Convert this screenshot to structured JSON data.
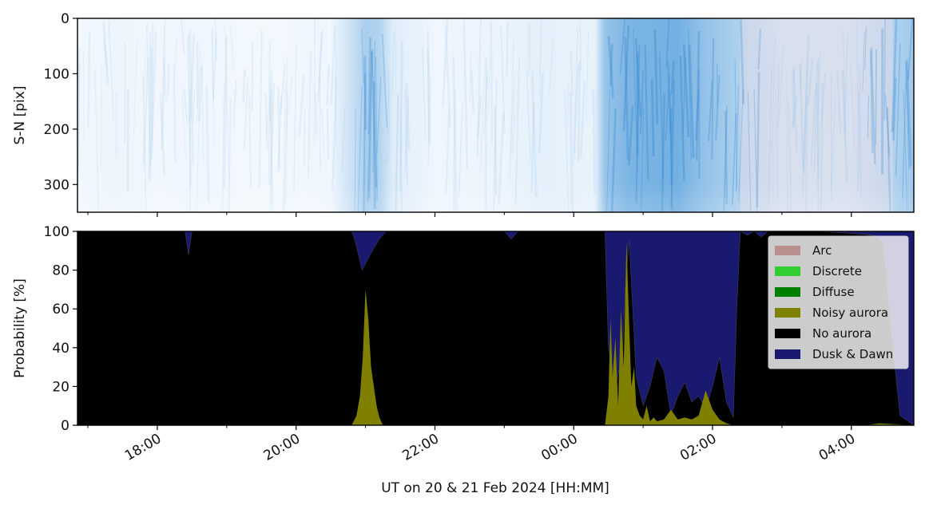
{
  "chart_data": [
    {
      "type": "heatmap",
      "ylabel": "S-N [pix]",
      "ylim": [
        350,
        0
      ],
      "yticks": [
        0,
        100,
        200,
        300
      ],
      "yticklabels": [
        "0",
        "100",
        "200",
        "300"
      ],
      "x_hours_range": [
        16.85,
        28.9
      ],
      "brightness_profile": [
        {
          "x": 16.9,
          "v": 0.05
        },
        {
          "x": 17.4,
          "v": 0.07
        },
        {
          "x": 18.0,
          "v": 0.05
        },
        {
          "x": 18.5,
          "v": 0.06
        },
        {
          "x": 19.5,
          "v": 0.04
        },
        {
          "x": 20.5,
          "v": 0.06
        },
        {
          "x": 20.85,
          "v": 0.3
        },
        {
          "x": 21.0,
          "v": 0.45
        },
        {
          "x": 21.2,
          "v": 0.4
        },
        {
          "x": 21.4,
          "v": 0.15
        },
        {
          "x": 22.0,
          "v": 0.06
        },
        {
          "x": 23.0,
          "v": 0.08
        },
        {
          "x": 23.5,
          "v": 0.12
        },
        {
          "x": 24.3,
          "v": 0.1
        },
        {
          "x": 24.45,
          "v": 0.55
        },
        {
          "x": 24.8,
          "v": 0.7
        },
        {
          "x": 25.5,
          "v": 0.75
        },
        {
          "x": 25.8,
          "v": 0.6
        },
        {
          "x": 26.3,
          "v": 0.45
        },
        {
          "x": 27.0,
          "v": 0.25
        },
        {
          "x": 28.0,
          "v": 0.25
        },
        {
          "x": 28.9,
          "v": 0.5
        }
      ]
    },
    {
      "type": "area",
      "stacked": true,
      "xlabel": "UT on 20 & 21 Feb 2024 [HH:MM]",
      "ylabel": "Probability [%]",
      "ylim": [
        0,
        100
      ],
      "yticks": [
        0,
        20,
        40,
        60,
        80,
        100
      ],
      "yticklabels": [
        "0",
        "20",
        "40",
        "60",
        "80",
        "100"
      ],
      "xlim": [
        16.85,
        28.9
      ],
      "x_major_ticks": [
        18,
        20,
        22,
        24,
        26,
        28
      ],
      "xticklabels": [
        "18:00",
        "20:00",
        "22:00",
        "00:00",
        "02:00",
        "04:00"
      ],
      "x_minor_ticks": [
        17,
        19,
        21,
        23,
        25,
        27
      ],
      "legend_position": "upper-right",
      "series": [
        {
          "name": "Arc",
          "color": "#bc8f8f",
          "x": [
            16.85,
            28.9
          ],
          "y": [
            0,
            0
          ]
        },
        {
          "name": "Discrete",
          "color": "#32cd32",
          "x": [
            16.85,
            28.9
          ],
          "y": [
            0,
            0
          ]
        },
        {
          "name": "Diffuse",
          "color": "#008000",
          "x": [
            16.85,
            28.9
          ],
          "y": [
            0,
            0
          ]
        },
        {
          "name": "Noisy aurora",
          "color": "#808000",
          "x": [
            16.85,
            20.8,
            20.87,
            20.92,
            20.96,
            21.0,
            21.04,
            21.08,
            21.12,
            21.16,
            21.2,
            21.25,
            24.45,
            24.5,
            24.53,
            24.56,
            24.6,
            24.64,
            24.68,
            24.72,
            24.76,
            24.8,
            24.83,
            24.87,
            24.9,
            24.95,
            25.0,
            25.05,
            25.1,
            25.15,
            25.2,
            25.3,
            25.4,
            25.5,
            25.6,
            25.7,
            25.8,
            25.9,
            26.0,
            26.1,
            26.2,
            26.3,
            26.4,
            28.2,
            28.4,
            28.9
          ],
          "y": [
            0,
            0,
            5,
            15,
            35,
            70,
            55,
            30,
            20,
            10,
            4,
            0,
            0,
            15,
            55,
            25,
            45,
            10,
            60,
            30,
            95,
            50,
            20,
            30,
            10,
            5,
            3,
            10,
            2,
            4,
            2,
            3,
            8,
            3,
            4,
            3,
            5,
            18,
            8,
            3,
            1,
            0,
            0,
            0,
            1,
            0
          ]
        },
        {
          "name": "No aurora",
          "color": "#000000",
          "x": [
            16.85,
            18.0,
            18.4,
            18.45,
            18.5,
            20.8,
            20.85,
            20.95,
            21.1,
            21.2,
            21.3,
            21.4,
            22.0,
            23.0,
            23.1,
            23.2,
            24.45,
            24.5,
            24.6,
            24.7,
            24.75,
            24.8,
            24.9,
            25.0,
            25.1,
            25.2,
            25.3,
            25.4,
            25.5,
            25.6,
            25.7,
            25.8,
            25.9,
            26.0,
            26.1,
            26.2,
            26.3,
            26.35,
            26.4,
            26.5,
            26.6,
            26.7,
            26.8,
            27.0,
            27.5,
            28.0,
            28.3,
            28.45,
            28.5,
            28.6,
            28.7,
            28.9
          ],
          "y": [
            100,
            100,
            100,
            88,
            100,
            100,
            95,
            80,
            90,
            96,
            100,
            100,
            100,
            100,
            96,
            100,
            100,
            40,
            20,
            35,
            75,
            95,
            25,
            10,
            20,
            35,
            28,
            5,
            15,
            22,
            12,
            15,
            8,
            20,
            35,
            12,
            4,
            60,
            100,
            98,
            100,
            97,
            100,
            100,
            100,
            99,
            98,
            95,
            80,
            40,
            5,
            0
          ]
        },
        {
          "name": "Dusk & Dawn",
          "color": "#191970",
          "x": [
            16.85,
            28.9
          ],
          "y": [
            100,
            100
          ]
        }
      ]
    }
  ]
}
